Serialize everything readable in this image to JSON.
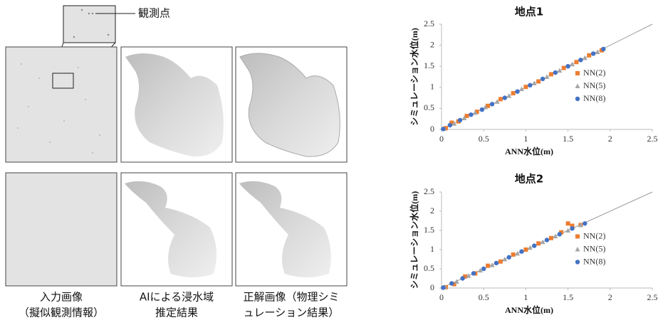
{
  "figure": {
    "callout": "観測点",
    "captions": [
      "入力画像",
      "（擬似観測情報）",
      "AIによる浸水域",
      "推定結果",
      "正解画像（物理シミ",
      "ュレーション結果）"
    ]
  },
  "chart_data": [
    {
      "type": "scatter",
      "title": "地点1",
      "x_label": "ANN水位(m)",
      "y_label": "シミュレーション水位(m)",
      "xlim": [
        0,
        2.5
      ],
      "ylim": [
        0,
        2.5
      ],
      "xticks": [
        0,
        0.5,
        1,
        1.5,
        2,
        2.5
      ],
      "yticks": [
        0,
        0.5,
        1,
        1.5,
        2,
        2.5
      ],
      "grid": false,
      "legend": "center right",
      "series": [
        {
          "name": "NN(2)",
          "color": "#ed7d31",
          "marker": "square",
          "x": [
            0.05,
            0.12,
            0.2,
            0.3,
            0.42,
            0.55,
            0.7,
            0.85,
            1.0,
            1.15,
            1.3,
            1.45,
            1.6,
            1.75,
            1.9
          ],
          "values": [
            0.03,
            0.16,
            0.19,
            0.32,
            0.42,
            0.56,
            0.72,
            0.86,
            1.01,
            1.14,
            1.31,
            1.46,
            1.6,
            1.76,
            1.88
          ]
        },
        {
          "name": "NN(5)",
          "color": "#a5a5a5",
          "marker": "triangle",
          "x": [
            0.03,
            0.15,
            0.27,
            0.4,
            0.52,
            0.66,
            0.8,
            0.95,
            1.1,
            1.25,
            1.4,
            1.55,
            1.7,
            1.85
          ],
          "values": [
            0.02,
            0.14,
            0.27,
            0.4,
            0.53,
            0.66,
            0.8,
            0.96,
            1.1,
            1.25,
            1.4,
            1.55,
            1.7,
            1.84
          ]
        },
        {
          "name": "NN(8)",
          "color": "#4472c4",
          "marker": "circle",
          "x": [
            0.02,
            0.1,
            0.22,
            0.35,
            0.48,
            0.6,
            0.75,
            0.9,
            1.05,
            1.2,
            1.35,
            1.5,
            1.65,
            1.8,
            1.92
          ],
          "values": [
            0.01,
            0.1,
            0.22,
            0.35,
            0.47,
            0.6,
            0.75,
            0.9,
            1.05,
            1.2,
            1.35,
            1.5,
            1.65,
            1.8,
            1.91
          ]
        }
      ]
    },
    {
      "type": "scatter",
      "title": "地点2",
      "x_label": "ANN水位(m)",
      "y_label": "シミュレーション水位(m)",
      "xlim": [
        0,
        2.5
      ],
      "ylim": [
        0,
        2.5
      ],
      "xticks": [
        0,
        0.5,
        1,
        1.5,
        2,
        2.5
      ],
      "yticks": [
        0,
        0.5,
        1,
        1.5,
        2,
        2.5
      ],
      "grid": false,
      "legend": "center right",
      "series": [
        {
          "name": "NN(2)",
          "color": "#ed7d31",
          "marker": "square",
          "x": [
            0.05,
            0.15,
            0.28,
            0.4,
            0.55,
            0.7,
            0.85,
            1.0,
            1.15,
            1.3,
            1.42,
            1.5,
            1.55,
            1.65
          ],
          "values": [
            0.02,
            0.1,
            0.3,
            0.38,
            0.58,
            0.69,
            0.87,
            1.0,
            1.16,
            1.3,
            1.45,
            1.68,
            1.62,
            1.64
          ]
        },
        {
          "name": "NN(5)",
          "color": "#a5a5a5",
          "marker": "triangle",
          "x": [
            0.04,
            0.18,
            0.32,
            0.46,
            0.6,
            0.75,
            0.9,
            1.05,
            1.2,
            1.35,
            1.5,
            1.65
          ],
          "values": [
            0.03,
            0.17,
            0.32,
            0.46,
            0.6,
            0.75,
            0.9,
            1.05,
            1.2,
            1.35,
            1.5,
            1.64
          ]
        },
        {
          "name": "NN(8)",
          "color": "#4472c4",
          "marker": "circle",
          "x": [
            0.02,
            0.12,
            0.25,
            0.38,
            0.5,
            0.65,
            0.8,
            0.95,
            1.1,
            1.25,
            1.4,
            1.55,
            1.7
          ],
          "values": [
            0.01,
            0.12,
            0.25,
            0.38,
            0.5,
            0.65,
            0.8,
            0.95,
            1.1,
            1.25,
            1.4,
            1.55,
            1.68
          ]
        }
      ]
    }
  ]
}
